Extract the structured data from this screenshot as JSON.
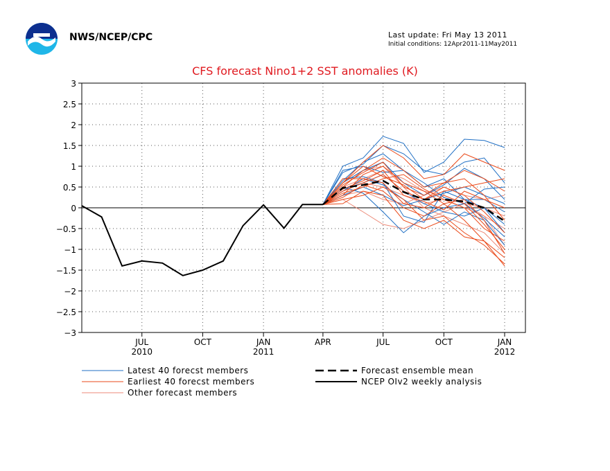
{
  "header": {
    "org": "NWS/NCEP/CPC",
    "last_update": "Last update: Fri May 13 2011",
    "initial_conditions": "Initial conditions: 12Apr2011-11May2011",
    "logo_icon": "noaa-logo-icon"
  },
  "chart_data": {
    "type": "line",
    "title": "CFS forecast Nino1+2 SST anomalies (K)",
    "title_color": "#e0191f",
    "xlabel": "",
    "ylabel": "",
    "ylim": [
      -3,
      3
    ],
    "grid": true,
    "x_tick_labels": [
      {
        "month": "JUL",
        "year": "2010"
      },
      {
        "month": "OCT",
        "year": ""
      },
      {
        "month": "JAN",
        "year": "2011"
      },
      {
        "month": "APR",
        "year": ""
      },
      {
        "month": "JUL",
        "year": ""
      },
      {
        "month": "OCT",
        "year": ""
      },
      {
        "month": "JAN",
        "year": "2012"
      }
    ],
    "y_ticks": [
      3,
      2.5,
      2,
      1.5,
      1,
      0.5,
      0,
      -0.5,
      -1,
      -1.5,
      -2,
      -2.5,
      -3
    ],
    "y_tick_labels": [
      "3",
      "2.5",
      "2",
      "1.5",
      "1",
      "0.5",
      "0",
      "−0.5",
      "−1",
      "−1.5",
      "−2",
      "−2.5",
      "−3"
    ],
    "analysis": {
      "name": "NCEP OIv2 weekly analysis",
      "color": "#000000",
      "x": [
        "2010-04",
        "2010-05",
        "2010-06",
        "2010-07",
        "2010-08",
        "2010-09",
        "2010-10",
        "2010-11",
        "2010-12",
        "2011-01",
        "2011-02",
        "2011-03",
        "2011-04"
      ],
      "values": [
        0.05,
        -0.22,
        -1.4,
        -1.28,
        -1.33,
        -1.63,
        -1.5,
        -1.28,
        -0.43,
        0.07,
        -0.49,
        0.08,
        0.08
      ]
    },
    "ensemble_mean": {
      "name": "Forecast ensemble mean",
      "color": "#000000",
      "x": [
        "2011-04",
        "2011-05",
        "2011-06",
        "2011-07",
        "2011-08",
        "2011-09",
        "2011-10",
        "2011-11",
        "2011-12",
        "2012-01"
      ],
      "values": [
        0.08,
        0.48,
        0.55,
        0.65,
        0.38,
        0.2,
        0.2,
        0.15,
        0.0,
        -0.32
      ]
    },
    "members": {
      "x": [
        "2011-04",
        "2011-05",
        "2011-06",
        "2011-07",
        "2011-08",
        "2011-09",
        "2011-10",
        "2011-11",
        "2011-12",
        "2012-01"
      ],
      "latest": {
        "name": "Latest 40 forecst members",
        "color": "#1f6fc4",
        "values": [
          [
            0.08,
            1.0,
            1.2,
            1.72,
            1.55,
            0.85,
            1.1,
            1.65,
            1.62,
            1.45
          ],
          [
            0.08,
            0.85,
            1.05,
            1.5,
            1.3,
            0.9,
            0.8,
            1.1,
            1.2,
            0.6
          ],
          [
            0.08,
            0.6,
            0.9,
            1.1,
            0.6,
            0.3,
            0.55,
            0.95,
            0.7,
            0.2
          ],
          [
            0.08,
            0.7,
            0.75,
            0.6,
            -0.2,
            -0.35,
            0.4,
            0.2,
            0.0,
            -0.6
          ],
          [
            0.08,
            0.45,
            0.6,
            0.8,
            0.4,
            0.1,
            -0.1,
            -0.2,
            0.0,
            -0.4
          ],
          [
            0.08,
            0.3,
            0.5,
            0.3,
            0.05,
            0.2,
            0.35,
            0.5,
            0.3,
            0.1
          ],
          [
            0.08,
            0.9,
            1.0,
            0.85,
            0.9,
            0.6,
            0.25,
            0.1,
            -0.25,
            -0.7
          ],
          [
            0.08,
            0.5,
            0.35,
            -0.1,
            -0.6,
            -0.2,
            0.0,
            0.1,
            0.45,
            0.5
          ],
          [
            0.08,
            0.65,
            1.1,
            1.3,
            0.9,
            0.5,
            0.7,
            0.2,
            0.2,
            -0.1
          ],
          [
            0.08,
            0.4,
            0.7,
            0.55,
            0.2,
            -0.1,
            -0.4,
            -0.1,
            -0.3,
            -0.9
          ]
        ]
      },
      "earliest": {
        "name": "Earliest 40 forecst members",
        "color": "#ea4a1a",
        "values": [
          [
            0.08,
            0.6,
            1.1,
            1.5,
            1.2,
            0.7,
            0.8,
            1.3,
            1.1,
            0.9
          ],
          [
            0.08,
            0.3,
            0.8,
            1.0,
            0.6,
            0.4,
            0.1,
            -0.3,
            -0.8,
            -1.4
          ],
          [
            0.08,
            0.4,
            0.6,
            0.8,
            0.4,
            0.2,
            0.5,
            0.3,
            -0.1,
            -0.6
          ],
          [
            0.08,
            0.2,
            0.3,
            0.5,
            0.2,
            -0.3,
            -0.2,
            -0.6,
            -0.9,
            -1.35
          ],
          [
            0.08,
            0.5,
            0.9,
            1.2,
            0.9,
            0.5,
            0.6,
            0.9,
            0.7,
            0.4
          ],
          [
            0.08,
            0.7,
            0.7,
            0.6,
            0.1,
            0.0,
            0.3,
            0.1,
            -0.4,
            -1.0
          ],
          [
            0.08,
            0.1,
            0.4,
            0.3,
            -0.3,
            -0.5,
            -0.3,
            -0.7,
            -0.8,
            -1.2
          ],
          [
            0.08,
            0.55,
            0.85,
            1.1,
            0.5,
            0.3,
            0.6,
            0.7,
            0.3,
            -0.3
          ],
          [
            0.08,
            0.35,
            0.5,
            0.7,
            0.8,
            0.45,
            0.2,
            0.0,
            -0.5,
            -0.8
          ],
          [
            0.08,
            0.45,
            0.65,
            0.9,
            0.3,
            0.15,
            -0.05,
            0.4,
            0.2,
            0.0
          ],
          [
            0.08,
            0.25,
            0.55,
            0.4,
            0.0,
            -0.2,
            0.1,
            0.2,
            -0.3,
            -1.1
          ],
          [
            0.08,
            0.6,
            1.0,
            0.75,
            0.55,
            0.2,
            0.4,
            0.5,
            0.6,
            0.7
          ]
        ]
      },
      "other": {
        "name": "Other forecast members",
        "color": "#ec8a78",
        "values": [
          [
            0.08,
            0.4,
            0.6,
            0.5,
            0.3,
            0.1,
            0.2,
            0.0,
            -0.2,
            -0.5
          ],
          [
            0.08,
            0.2,
            -0.1,
            -0.4,
            -0.5,
            -0.3,
            -0.1,
            0.1,
            0.0,
            -0.2
          ],
          [
            0.08,
            0.5,
            0.7,
            0.9,
            0.7,
            0.4,
            0.3,
            0.1,
            -0.2,
            -0.9
          ],
          [
            0.08,
            0.3,
            0.4,
            0.2,
            0.1,
            0.3,
            0.5,
            0.3,
            0.2,
            0.3
          ],
          [
            0.08,
            0.6,
            0.9,
            1.0,
            0.5,
            0.0,
            -0.2,
            -0.4,
            -0.6,
            -1.1
          ]
        ]
      }
    },
    "legend": {
      "placement": "bottom",
      "entries": [
        {
          "label": "Latest 40 forecst members",
          "color": "#1f6fc4",
          "style": "solid"
        },
        {
          "label": "Earliest 40 forecst members",
          "color": "#ea4a1a",
          "style": "solid"
        },
        {
          "label": "Other forecast members",
          "color": "#ec8a78",
          "style": "solid"
        },
        {
          "label": "Forecast ensemble mean",
          "color": "#000000",
          "style": "dashed"
        },
        {
          "label": "NCEP OIv2 weekly analysis",
          "color": "#000000",
          "style": "solid"
        }
      ]
    }
  }
}
